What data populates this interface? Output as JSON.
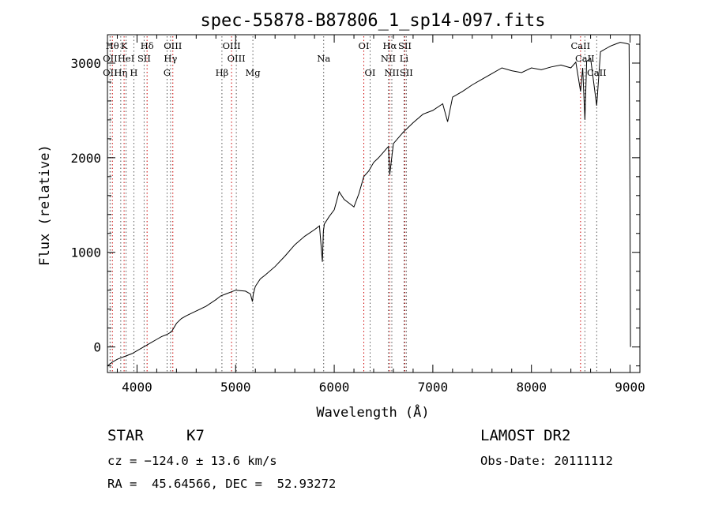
{
  "chart_data": {
    "type": "line",
    "title": "spec-55878-B87806_1_sp14-097.fits",
    "xlabel": "Wavelength (Å)",
    "ylabel": "Flux (relative)",
    "xlim": [
      3700,
      9100
    ],
    "ylim": [
      -270,
      3300
    ],
    "xticks": [
      4000,
      5000,
      6000,
      7000,
      8000,
      9000
    ],
    "yticks": [
      0,
      1000,
      2000,
      3000
    ],
    "grid": false,
    "series": [
      {
        "x": [
          3700,
          3750,
          3800,
          3850,
          3900,
          3950,
          4000,
          4050,
          4100,
          4150,
          4200,
          4250,
          4300,
          4350,
          4400,
          4450,
          4500,
          4600,
          4700,
          4800,
          4850,
          4900,
          5000,
          5100,
          5150,
          5170,
          5180,
          5200,
          5250,
          5300,
          5400,
          5500,
          5600,
          5700,
          5800,
          5850,
          5880,
          5890,
          5900,
          5950,
          6000,
          6050,
          6100,
          6150,
          6200,
          6250,
          6300,
          6350,
          6400,
          6450,
          6500,
          6550,
          6563,
          6600,
          6700,
          6800,
          6900,
          7000,
          7100,
          7150,
          7200,
          7300,
          7400,
          7500,
          7600,
          7700,
          7800,
          7900,
          8000,
          8100,
          8200,
          8300,
          8400,
          8450,
          8498,
          8520,
          8542,
          8560,
          8600,
          8662,
          8700,
          8750,
          8800,
          8850,
          8900,
          8950,
          8990,
          9000,
          9005
        ],
        "y": [
          -200,
          -160,
          -130,
          -110,
          -90,
          -70,
          -40,
          -10,
          20,
          50,
          80,
          110,
          130,
          160,
          250,
          300,
          330,
          380,
          430,
          500,
          540,
          560,
          600,
          590,
          560,
          480,
          560,
          640,
          720,
          760,
          850,
          960,
          1080,
          1170,
          1240,
          1280,
          900,
          1220,
          1300,
          1380,
          1450,
          1640,
          1560,
          1520,
          1480,
          1620,
          1800,
          1860,
          1950,
          2000,
          2060,
          2120,
          1820,
          2150,
          2270,
          2370,
          2460,
          2500,
          2570,
          2380,
          2640,
          2700,
          2770,
          2830,
          2890,
          2950,
          2920,
          2900,
          2950,
          2930,
          2960,
          2980,
          2950,
          3010,
          2700,
          2950,
          2400,
          3020,
          3050,
          2550,
          3120,
          3150,
          3180,
          3200,
          3220,
          3210,
          3200,
          1500,
          0
        ]
      }
    ],
    "line_markers": [
      {
        "wl": 3750,
        "label": "Hθ",
        "row": 0
      },
      {
        "wl": 3869,
        "label": "K",
        "row": 0
      },
      {
        "wl": 4102,
        "label": "Hδ",
        "row": 0
      },
      {
        "wl": 4363,
        "label": "OIII",
        "row": 0
      },
      {
        "wl": 4959,
        "label": "OIII",
        "row": 0
      },
      {
        "wl": 6300,
        "label": "OI",
        "row": 0
      },
      {
        "wl": 6563,
        "label": "Hα",
        "row": 0
      },
      {
        "wl": 6716,
        "label": "SII",
        "row": 0
      },
      {
        "wl": 8498,
        "label": "CaII",
        "row": 0
      },
      {
        "wl": 3727,
        "label": "OII",
        "row": 1
      },
      {
        "wl": 3889,
        "label": "HeI",
        "row": 1
      },
      {
        "wl": 4072,
        "label": "SII",
        "row": 1
      },
      {
        "wl": 4340,
        "label": "Hγ",
        "row": 1
      },
      {
        "wl": 5007,
        "label": "OIII",
        "row": 1
      },
      {
        "wl": 5893,
        "label": "Na",
        "row": 1
      },
      {
        "wl": 6548,
        "label": "NII",
        "row": 1
      },
      {
        "wl": 6708,
        "label": "Li",
        "row": 1
      },
      {
        "wl": 8542,
        "label": "CaII",
        "row": 1
      },
      {
        "wl": 3727,
        "label": "OII",
        "row": 2
      },
      {
        "wl": 3835,
        "label": "Hη",
        "row": 2
      },
      {
        "wl": 3968,
        "label": "H",
        "row": 2
      },
      {
        "wl": 4305,
        "label": "G",
        "row": 2
      },
      {
        "wl": 4861,
        "label": "Hβ",
        "row": 2
      },
      {
        "wl": 5175,
        "label": "Mg",
        "row": 2
      },
      {
        "wl": 6364,
        "label": "OI",
        "row": 2
      },
      {
        "wl": 6584,
        "label": "NII",
        "row": 2
      },
      {
        "wl": 6731,
        "label": "SII",
        "row": 2
      },
      {
        "wl": 8662,
        "label": "CaII",
        "row": 2
      }
    ],
    "marker_colors": {
      "row0": "#cc0000",
      "row1": "#555555"
    }
  },
  "info": {
    "object_class": "STAR",
    "subclass": "K7",
    "survey": "LAMOST DR2",
    "cz": "cz = −124.0 ± 13.6 km/s",
    "obs_date": "Obs-Date: 20111112",
    "coords": "RA =  45.64566, DEC =  52.93272"
  }
}
